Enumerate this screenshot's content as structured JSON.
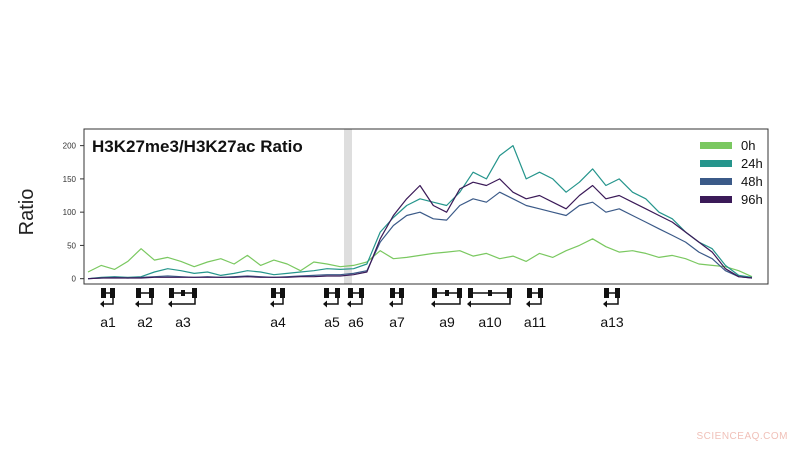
{
  "watermark": "SCIENCEAQ.COM",
  "chart_data": {
    "type": "line",
    "title": "H3K27me3/H3K27ac Ratio",
    "xlabel": "",
    "ylabel": "Ratio",
    "ylim": [
      -8,
      225
    ],
    "yticks": [
      "0",
      "50",
      "100",
      "150",
      "200"
    ],
    "xlim": [
      0,
      100
    ],
    "grid": false,
    "legend_position": "top-right",
    "x": [
      0,
      2,
      4,
      6,
      8,
      10,
      12,
      14,
      16,
      18,
      20,
      22,
      24,
      26,
      28,
      30,
      32,
      34,
      36,
      38,
      40,
      42,
      44,
      46,
      48,
      50,
      52,
      54,
      56,
      58,
      60,
      62,
      64,
      66,
      68,
      70,
      72,
      74,
      76,
      78,
      80,
      82,
      84,
      86,
      88,
      90,
      92,
      94,
      96,
      98,
      100
    ],
    "series": [
      {
        "name": "0h",
        "color": "#7ac860",
        "values": [
          10,
          20,
          14,
          26,
          45,
          28,
          32,
          26,
          18,
          25,
          30,
          22,
          35,
          20,
          28,
          22,
          12,
          25,
          22,
          18,
          20,
          25,
          42,
          30,
          32,
          35,
          38,
          40,
          42,
          34,
          38,
          30,
          34,
          26,
          38,
          32,
          42,
          50,
          60,
          48,
          40,
          42,
          38,
          32,
          35,
          30,
          22,
          20,
          18,
          12,
          3
        ]
      },
      {
        "name": "24h",
        "color": "#25958c",
        "values": [
          0,
          2,
          3,
          2,
          3,
          10,
          15,
          12,
          8,
          10,
          5,
          8,
          12,
          10,
          6,
          8,
          10,
          12,
          15,
          14,
          15,
          22,
          70,
          92,
          110,
          120,
          115,
          110,
          130,
          160,
          150,
          185,
          200,
          150,
          160,
          150,
          130,
          145,
          165,
          140,
          150,
          130,
          120,
          100,
          90,
          70,
          55,
          45,
          20,
          5,
          2
        ]
      },
      {
        "name": "48h",
        "color": "#3b5a88",
        "values": [
          0,
          1,
          2,
          1,
          2,
          3,
          4,
          3,
          2,
          3,
          2,
          3,
          4,
          3,
          2,
          3,
          4,
          5,
          6,
          6,
          8,
          12,
          55,
          80,
          95,
          100,
          90,
          88,
          110,
          120,
          115,
          130,
          120,
          110,
          105,
          100,
          95,
          110,
          115,
          100,
          105,
          95,
          85,
          75,
          65,
          55,
          40,
          30,
          12,
          3,
          1
        ]
      },
      {
        "name": "96h",
        "color": "#3b1a58",
        "values": [
          0,
          1,
          1,
          1,
          1,
          2,
          2,
          2,
          2,
          2,
          2,
          2,
          3,
          2,
          2,
          2,
          3,
          3,
          4,
          4,
          6,
          10,
          60,
          95,
          120,
          140,
          110,
          100,
          135,
          145,
          140,
          150,
          130,
          120,
          125,
          115,
          105,
          125,
          140,
          120,
          125,
          115,
          105,
          95,
          85,
          70,
          55,
          40,
          15,
          3,
          1
        ]
      }
    ],
    "genes": [
      "a1",
      "a2",
      "a3",
      "a4",
      "a5",
      "a6",
      "a7",
      "a9",
      "a10",
      "a11",
      "a13"
    ]
  }
}
